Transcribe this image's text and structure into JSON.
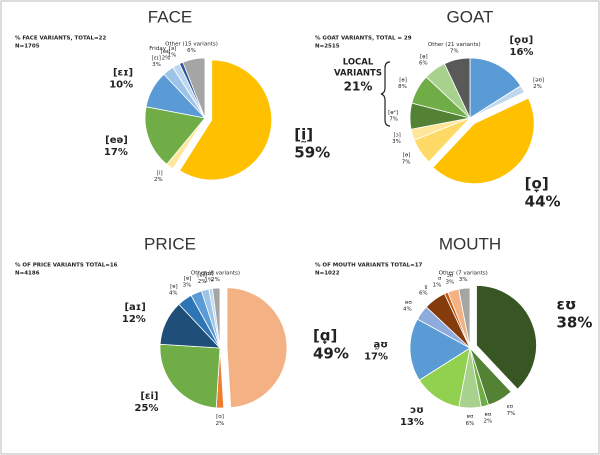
{
  "chart_data": [
    {
      "type": "pie",
      "title": "FACE",
      "subtitle": "% FACE VARIANTS, TOTAL=22",
      "n": "N=1705",
      "categories": [
        "[ḭ]",
        "[i]",
        "[eə]",
        "[ɛɪ]",
        "[ɛɪ]",
        "[eɪ]",
        "Friday_[ə]",
        "Other (15 variants)"
      ],
      "values": [
        59,
        2,
        17,
        10,
        3,
        2,
        1,
        6
      ],
      "value_labels": [
        "59%",
        "2%",
        "17%",
        "10%",
        "3%",
        "2%",
        "1%",
        "6%"
      ],
      "colors": [
        "#FFC000",
        "#FFE699",
        "#70AD47",
        "#5B9BD5",
        "#9DC3E6",
        "#BDD7EE",
        "#2E5597",
        "#A5A5A5"
      ]
    },
    {
      "type": "pie",
      "title": "GOAT",
      "subtitle": "% GOAT VARIANTS, TOTAL = 29",
      "n": "N=2515",
      "annotation": [
        "LOCAL",
        "VARIANTS",
        "21%"
      ],
      "categories": [
        "[o̞ʊ]",
        "[əʊ]",
        "[o̞]",
        "[ɵ]",
        "[ɔ]",
        "[ɵᵊ]",
        "[ɵ]",
        "[ɵ̞]",
        "Other (21 variants)"
      ],
      "values": [
        16,
        2,
        44,
        7,
        3,
        7,
        8,
        6,
        7
      ],
      "value_labels": [
        "16%",
        "2%",
        "44%",
        "7%",
        "3%",
        "7%",
        "8%",
        "6%",
        "7%"
      ],
      "colors": [
        "#5B9BD5",
        "#BDD7EE",
        "#FFC000",
        "#FFD966",
        "#FFE699",
        "#548235",
        "#70AD47",
        "#A9D18E",
        "#595959"
      ]
    },
    {
      "type": "pie",
      "title": "PRICE",
      "subtitle": "% OF PRICE VARIANTS TOTAL=16",
      "n": "N=4186",
      "categories": [
        "[ɑ̟]",
        "[ɑ]",
        "[ɛi]",
        "[aɪ]",
        "[ɐ]",
        "[ɐ]",
        "[ɐɪ]",
        "[ɑɪ]",
        "Other (8 variants)"
      ],
      "values": [
        49,
        2,
        25,
        12,
        4,
        3,
        2,
        1,
        2
      ],
      "value_labels": [
        "49%",
        "2%",
        "25%",
        "12%",
        "4%",
        "3%",
        "2%",
        "1%",
        "2%"
      ],
      "colors": [
        "#F4B183",
        "#ED7D31",
        "#70AD47",
        "#1F4E79",
        "#2E75B6",
        "#5B9BD5",
        "#9DC3E6",
        "#BDD7EE",
        "#A5A5A5"
      ]
    },
    {
      "type": "pie",
      "title": "MOUTH",
      "subtitle": "% OF MOUTH VARIANTS TOTAL=17",
      "n": "N=1022",
      "categories": [
        "ɛʊ",
        "ɛʊ",
        "ɐʊ",
        "ɐʊ",
        "ɔʊ",
        "a̰ʊ",
        "ɐʊ",
        "ɣ",
        "ʊ",
        "ɔʊ",
        "Other (7 variants)"
      ],
      "values": [
        38,
        7,
        2,
        6,
        13,
        17,
        4,
        6,
        1,
        3,
        3
      ],
      "value_labels": [
        "38%",
        "7%",
        "2%",
        "6%",
        "13%",
        "17%",
        "4%",
        "6%",
        "1%",
        "3%",
        "3%"
      ],
      "colors": [
        "#375623",
        "#548235",
        "#70AD47",
        "#A9D18E",
        "#92D050",
        "#5B9BD5",
        "#8FAADC",
        "#843C0C",
        "#C55A11",
        "#F4B183",
        "#A5A5A5"
      ]
    }
  ]
}
